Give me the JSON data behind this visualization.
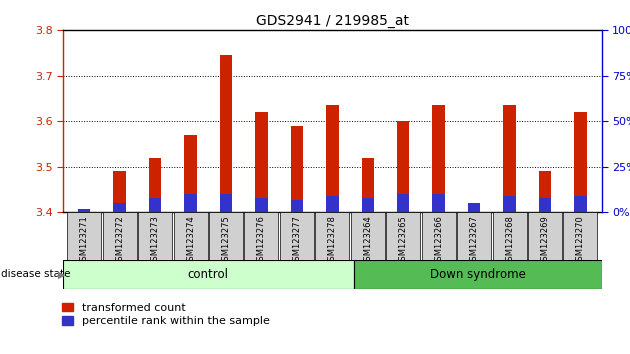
{
  "title": "GDS2941 / 219985_at",
  "samples": [
    "GSM123271",
    "GSM123272",
    "GSM123273",
    "GSM123274",
    "GSM123275",
    "GSM123276",
    "GSM123277",
    "GSM123278",
    "GSM123264",
    "GSM123265",
    "GSM123266",
    "GSM123267",
    "GSM123268",
    "GSM123269",
    "GSM123270"
  ],
  "transformed_count": [
    3.401,
    3.49,
    3.52,
    3.57,
    3.745,
    3.62,
    3.59,
    3.635,
    3.52,
    3.6,
    3.635,
    3.42,
    3.635,
    3.49,
    3.62
  ],
  "percentile_rank": [
    2,
    5,
    8,
    10,
    10,
    8,
    7,
    9,
    8,
    10,
    10,
    5,
    9,
    8,
    9
  ],
  "ylim_left": [
    3.4,
    3.8
  ],
  "ylim_right": [
    0,
    100
  ],
  "yticks_left": [
    3.4,
    3.5,
    3.6,
    3.7,
    3.8
  ],
  "yticks_right": [
    0,
    25,
    50,
    75,
    100
  ],
  "control_count": 8,
  "down_syndrome_count": 7,
  "control_label": "control",
  "down_syndrome_label": "Down syndrome",
  "disease_state_label": "disease state",
  "legend_red": "transformed count",
  "legend_blue": "percentile rank within the sample",
  "bar_width": 0.35,
  "red_color": "#cc2200",
  "blue_color": "#3333cc",
  "control_bg": "#ccffcc",
  "down_bg": "#55bb55",
  "sample_bg": "#d0d0d0",
  "title_fontsize": 10,
  "tick_fontsize": 8,
  "right_tick_color": "#0000cc"
}
